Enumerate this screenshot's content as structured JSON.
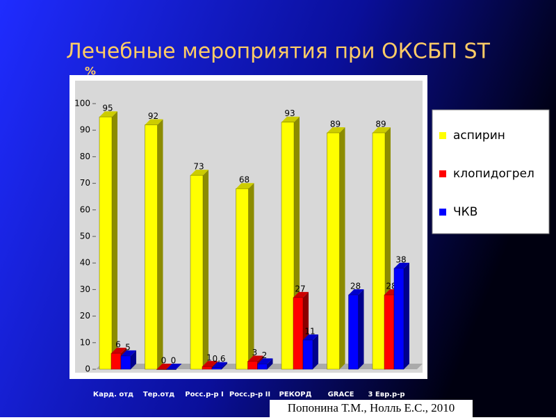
{
  "chart_data": {
    "type": "bar3d",
    "title": "Лечебные мероприятия при ОКСБП ST",
    "y_label": "%",
    "footer": "Попонина Т.М., Нолль Е.С., 2010",
    "categories": [
      "Кард. отд",
      "Тер.отд",
      "Росс.р-р I",
      "Росс.р-р II",
      "РЕКОРД",
      "GRACE",
      "3 Евр.р-р"
    ],
    "series": [
      {
        "name": "аспирин",
        "color": "#ffff00",
        "values": [
          95,
          92,
          73,
          68,
          93,
          89,
          89
        ]
      },
      {
        "name": "клопидогрел",
        "color": "#ff0000",
        "values": [
          6,
          0,
          1,
          3,
          27,
          null,
          28
        ]
      },
      {
        "name": "ЧКВ",
        "color": "#0000ff",
        "values": [
          5,
          0,
          0.6,
          2,
          11,
          28,
          38
        ],
        "value_labels": [
          "5",
          "0",
          "0,6",
          "2",
          "11",
          "28",
          "38"
        ]
      }
    ],
    "ylim": [
      0,
      100
    ],
    "yticks": [
      0,
      10,
      20,
      30,
      40,
      50,
      60,
      70,
      80,
      90,
      100
    ],
    "legend": "right"
  }
}
